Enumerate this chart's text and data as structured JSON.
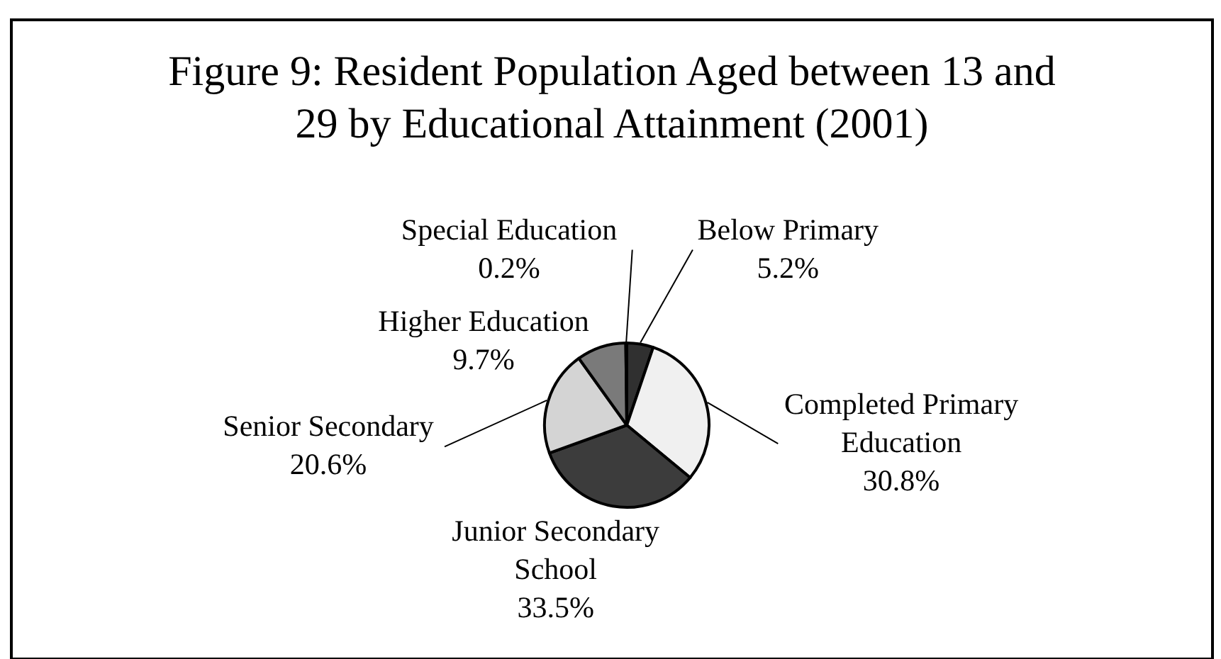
{
  "chart_data": {
    "type": "pie",
    "title": "Figure 9: Resident Population Aged between 13 and 29 by Educational Attainment (2001)",
    "categories": [
      "Below Primary",
      "Completed Primary Education",
      "Junior Secondary School",
      "Senior Secondary",
      "Higher Education",
      "Special Education"
    ],
    "values": [
      5.2,
      30.8,
      33.5,
      20.6,
      9.7,
      0.2
    ],
    "value_labels": [
      "5.2%",
      "30.8%",
      "33.5%",
      "20.6%",
      "9.7%",
      "0.2%"
    ],
    "colors": [
      "#303030",
      "#f0f0f0",
      "#3c3c3c",
      "#d4d4d4",
      "#7a7a7a",
      "#e8e8e8"
    ]
  }
}
